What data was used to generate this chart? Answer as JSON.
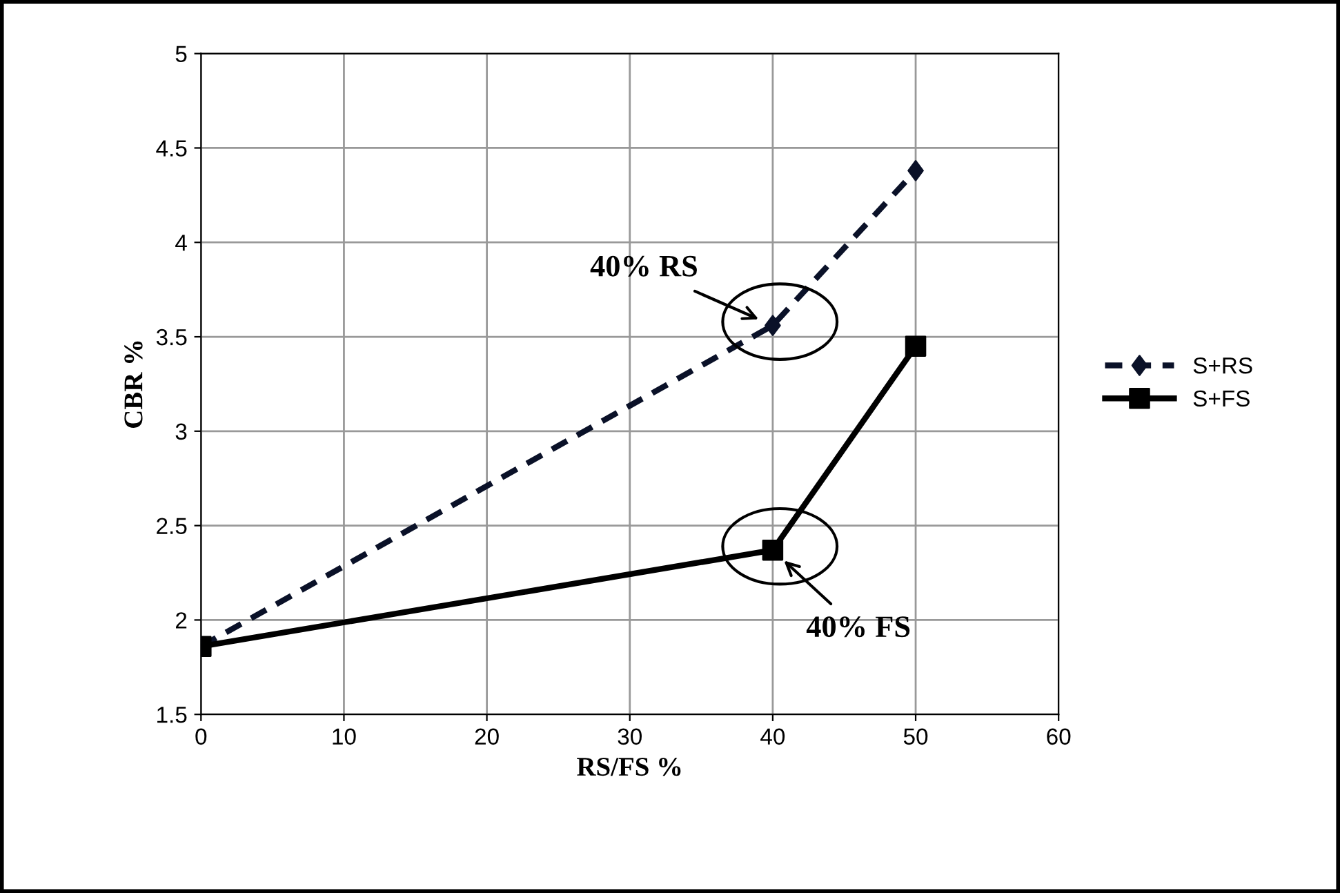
{
  "chart_data": {
    "type": "line",
    "xlabel": "RS/FS %",
    "ylabel": "CBR %",
    "x": [
      0,
      40,
      50
    ],
    "series": [
      {
        "name": "S+RS",
        "color": "#0a1128",
        "values": [
          1.86,
          3.56,
          4.38
        ],
        "marker": "diamond",
        "line_style": "dashed"
      },
      {
        "name": "S+FS",
        "color": "#000000",
        "values": [
          1.86,
          2.37,
          3.45
        ],
        "marker": "square",
        "line_style": "solid"
      }
    ],
    "xlim": [
      0,
      60
    ],
    "xticks": [
      0,
      10,
      20,
      30,
      40,
      50,
      60
    ],
    "ylim": [
      1.5,
      5
    ],
    "yticks": [
      1.5,
      2,
      2.5,
      3,
      3.5,
      4,
      4.5,
      5
    ],
    "grid": true,
    "legend": "right",
    "annotations": [
      {
        "text": "40% RS",
        "x": 40,
        "y": 3.56
      },
      {
        "text": "40% FS",
        "x": 40,
        "y": 2.37
      }
    ]
  }
}
